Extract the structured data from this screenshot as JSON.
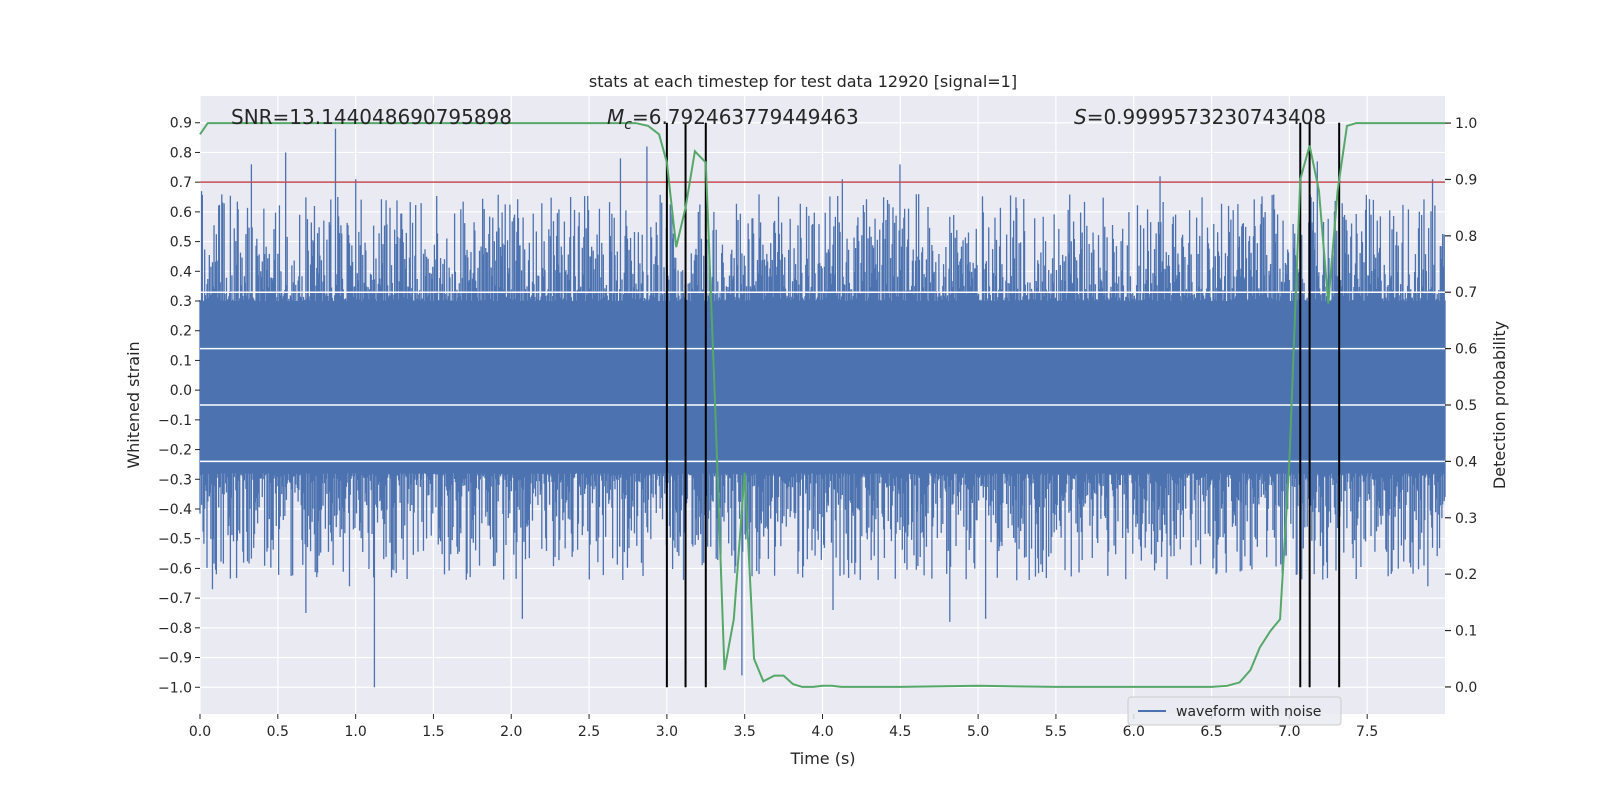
{
  "chart_data": {
    "type": "line",
    "title": "stats at each timestep for test data 12920 [signal=1]",
    "xlabel": "Time (s)",
    "ylabel": "Whitened strain",
    "y2label": "Detection probability",
    "xlim": [
      0.0,
      8.0
    ],
    "ylim": [
      -1.09,
      0.99
    ],
    "y2lim": [
      -0.048,
      1.048
    ],
    "xticks": [
      0.0,
      0.5,
      1.0,
      1.5,
      2.0,
      2.5,
      3.0,
      3.5,
      4.0,
      4.5,
      5.0,
      5.5,
      6.0,
      6.5,
      7.0,
      7.5
    ],
    "xtick_labels": [
      "0.0",
      "0.5",
      "1.0",
      "1.5",
      "2.0",
      "2.5",
      "3.0",
      "3.5",
      "4.0",
      "4.5",
      "5.0",
      "5.5",
      "6.0",
      "6.5",
      "7.0",
      "7.5"
    ],
    "yticks": [
      0.9,
      0.8,
      0.7,
      0.6,
      0.5,
      0.4,
      0.3,
      0.2,
      0.1,
      0.0,
      -0.1,
      -0.2,
      -0.3,
      -0.4,
      -0.5,
      -0.6,
      -0.7,
      -0.8,
      -0.9,
      -1.0
    ],
    "ytick_labels": [
      "0.9",
      "0.8",
      "0.7",
      "0.6",
      "0.5",
      "0.4",
      "0.3",
      "0.2",
      "0.1",
      "0.0",
      "−0.1",
      "−0.2",
      "−0.3",
      "−0.4",
      "−0.5",
      "−0.6",
      "−0.7",
      "−0.8",
      "−0.9",
      "−1.0"
    ],
    "y2ticks": [
      1.0,
      0.9,
      0.8,
      0.7,
      0.6,
      0.5,
      0.4,
      0.3,
      0.2,
      0.1,
      0.0
    ],
    "y2tick_labels": [
      "1.0",
      "0.9",
      "0.8",
      "0.7",
      "0.6",
      "0.5",
      "0.4",
      "0.3",
      "0.2",
      "0.1",
      "0.0"
    ],
    "grid": true,
    "annotations": {
      "snr": "SNR=13.144048690795898",
      "mc_symbol": "M",
      "mc_sub": "c",
      "mc_value": "=6.792463779449463",
      "s_symbol": "S",
      "s_value": "=0.9999573230743408"
    },
    "threshold_line": {
      "value": 0.7,
      "color": "#c44e52"
    },
    "detection_markers": {
      "x": [
        3.0,
        3.12,
        3.25,
        7.07,
        7.13,
        7.32
      ],
      "ymin": -1.0,
      "ymax": 0.9,
      "color": "#000000"
    },
    "waveform": {
      "name": "waveform with noise",
      "color": "#4c72b0",
      "duration": 8.0,
      "sample_count": 1600,
      "peaks": [
        {
          "t": 0.01,
          "v": 0.67
        },
        {
          "t": 0.33,
          "v": 0.76
        },
        {
          "t": 0.55,
          "v": 0.8
        },
        {
          "t": 0.87,
          "v": 0.88
        },
        {
          "t": 1.0,
          "v": 0.71
        },
        {
          "t": 2.7,
          "v": 0.78
        },
        {
          "t": 2.87,
          "v": 0.82
        },
        {
          "t": 3.2,
          "v": 0.6
        },
        {
          "t": 4.5,
          "v": 0.76
        },
        {
          "t": 4.13,
          "v": 0.71
        },
        {
          "t": 6.17,
          "v": 0.72
        },
        {
          "t": 7.18,
          "v": 0.77
        },
        {
          "t": 7.92,
          "v": 0.71
        },
        {
          "t": 1.12,
          "v": -1.0
        },
        {
          "t": 0.68,
          "v": -0.75
        },
        {
          "t": 0.96,
          "v": -0.66
        },
        {
          "t": 2.07,
          "v": -0.77
        },
        {
          "t": 3.48,
          "v": -0.96
        },
        {
          "t": 4.82,
          "v": -0.78
        },
        {
          "t": 5.05,
          "v": -0.77
        },
        {
          "t": 4.07,
          "v": -0.74
        },
        {
          "t": 0.08,
          "v": -0.67
        },
        {
          "t": 7.89,
          "v": -0.66
        }
      ]
    },
    "series": [
      {
        "name": "detection probability",
        "axis": "right",
        "color": "#55a868",
        "x": [
          0.0,
          0.05,
          0.1,
          2.5,
          2.8,
          2.88,
          2.95,
          3.0,
          3.06,
          3.12,
          3.18,
          3.25,
          3.31,
          3.37,
          3.43,
          3.5,
          3.56,
          3.62,
          3.69,
          3.75,
          3.81,
          3.87,
          3.94,
          4.0,
          4.06,
          4.12,
          4.5,
          5.0,
          5.5,
          6.0,
          6.5,
          6.6,
          6.68,
          6.75,
          6.81,
          6.88,
          6.94,
          7.0,
          7.07,
          7.13,
          7.19,
          7.25,
          7.31,
          7.37,
          7.43,
          7.5,
          8.0
        ],
        "y": [
          0.98,
          1.0,
          1.0,
          1.0,
          1.0,
          0.995,
          0.98,
          0.93,
          0.78,
          0.85,
          0.95,
          0.93,
          0.5,
          0.03,
          0.12,
          0.38,
          0.05,
          0.01,
          0.02,
          0.02,
          0.005,
          0.0,
          0.0,
          0.002,
          0.002,
          0.0,
          0.0,
          0.002,
          0.0,
          0.0,
          0.0,
          0.002,
          0.008,
          0.03,
          0.07,
          0.1,
          0.12,
          0.4,
          0.9,
          0.96,
          0.88,
          0.68,
          0.88,
          0.995,
          1.0,
          1.0,
          1.0
        ]
      }
    ],
    "legend": {
      "label": "waveform with noise",
      "position": "lower-right"
    }
  }
}
